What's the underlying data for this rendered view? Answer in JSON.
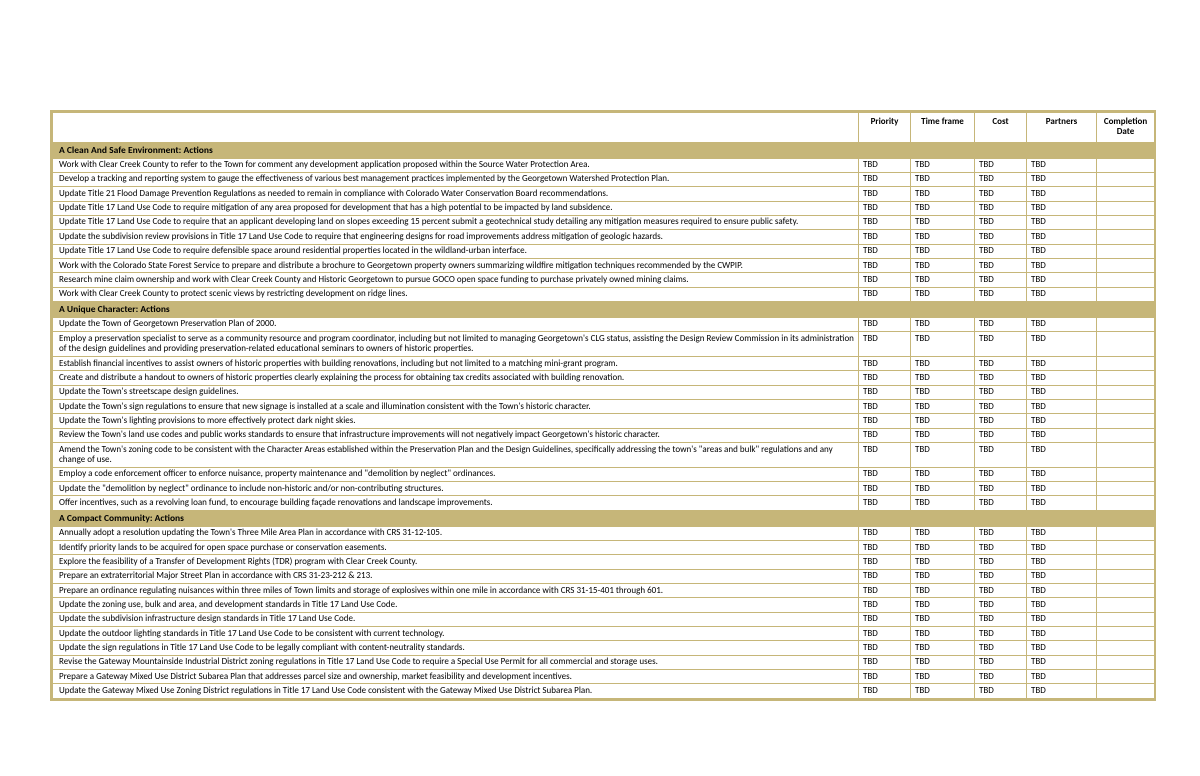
{
  "columns": [
    "",
    "Priority",
    "Time frame",
    "Cost",
    "Partners",
    "Completion Date"
  ],
  "default_value": "TBD",
  "colors": {
    "border": "#c6b679",
    "section_bg": "#c6b679",
    "page_bg": "#ffffff",
    "text": "#000000"
  },
  "sections": [
    {
      "title": "A Clean And Safe Environment: Actions",
      "rows": [
        "Work with Clear Creek County to refer to the Town for comment any development application proposed within the Source Water Protection Area.",
        "Develop a tracking and reporting system to gauge the effectiveness of various best management practices implemented by the Georgetown Watershed Protection Plan.",
        "Update Title 21 Flood Damage Prevention Regulations as needed to remain in compliance with Colorado Water Conservation Board recommendations.",
        "Update Title 17 Land Use Code to require mitigation of any area proposed for development that has a high potential to be impacted by land subsidence.",
        "Update Title 17 Land Use Code to require that an applicant developing land on slopes exceeding 15 percent submit a geotechnical study detailing any mitigation measures required to ensure public safety.",
        "Update the subdivision review provisions in Title 17 Land Use Code to require that engineering designs for road improvements address mitigation of geologic hazards.",
        "Update Title 17 Land Use Code to require defensible space around residential properties located in the wildland-urban interface.",
        "Work with the Colorado State Forest Service to prepare and distribute a brochure to Georgetown property owners summarizing wildfire mitigation techniques recommended by the CWPIP.",
        "Research mine claim ownership and work with Clear Creek County and Historic Georgetown to pursue GOCO open space funding to purchase privately owned mining claims.",
        "Work with Clear Creek County to protect scenic views by restricting development on ridge lines."
      ]
    },
    {
      "title": "A Unique Character: Actions",
      "rows": [
        "Update the Town of Georgetown Preservation Plan of 2000.",
        "Employ a preservation specialist to serve as a community resource and program coordinator, including but not limited to managing Georgetown's CLG status, assisting the Design Review Commission in its administration of the design guidelines and providing preservation-related educational seminars to owners of historic properties.",
        "Establish financial incentives to assist owners of historic properties with building renovations, including but not limited to a matching mini-grant program.",
        "Create and distribute a handout to owners of historic properties clearly explaining the process for obtaining tax credits associated with building renovation.",
        "Update the Town's streetscape design guidelines.",
        "Update the Town's sign regulations to ensure that new signage is installed at a scale and illumination consistent with the Town's historic character.",
        "Update the Town's lighting provisions to more effectively protect dark night skies.",
        "Review the Town's land use codes and public works standards to ensure that infrastructure improvements will not negatively impact Georgetown's historic character.",
        "Amend the Town's zoning code to be consistent with the Character Areas established within the Preservation Plan and the Design Guidelines, specifically addressing the town's \"areas and bulk\" regulations and any change of use.",
        "Employ a code enforcement officer to enforce nuisance, property maintenance and \"demolition by neglect\" ordinances.",
        "Update the \"demolition by neglect\" ordinance to include non-historic and/or non-contributing structures.",
        "Offer incentives, such as a revolving loan fund, to encourage building façade renovations and landscape improvements."
      ]
    },
    {
      "title": "A Compact Community: Actions",
      "rows": [
        "Annually adopt a resolution updating the Town's Three Mile Area Plan in accordance with CRS 31-12-105.",
        "Identify priority lands to be acquired for open space purchase or conservation easements.",
        "Explore the feasibility of a Transfer of Development Rights (TDR) program with Clear Creek County.",
        "Prepare an extraterritorial Major Street Plan in accordance with CRS 31-23-212 & 213.",
        "Prepare an ordinance regulating nuisances within three miles of Town limits and storage of explosives within one mile in accordance with CRS 31-15-401 through 601.",
        "Update the zoning use, bulk and area, and development standards in Title 17 Land Use Code.",
        "Update the subdivision infrastructure design standards in Title 17 Land Use Code.",
        "Update the outdoor lighting standards in Title 17 Land Use Code to be consistent with current technology.",
        "Update the sign regulations in Title 17 Land Use Code to be legally compliant with content-neutrality standards.",
        "Revise the Gateway Mountainside Industrial District zoning regulations in Title 17 Land Use Code to require a Special Use Permit for all commercial and storage uses.",
        "Prepare a Gateway Mixed Use District Subarea Plan that addresses parcel size and ownership, market feasibility and development incentives.",
        "Update the Gateway Mixed Use Zoning District regulations in Title 17 Land Use Code consistent with the Gateway Mixed Use District Subarea Plan."
      ]
    }
  ]
}
